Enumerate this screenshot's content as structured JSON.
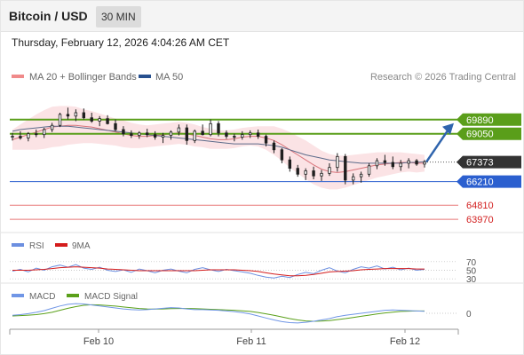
{
  "header": {
    "title": "Bitcoin / USD",
    "timeframe": "30 MIN"
  },
  "datetime": "Thursday, February 12, 2026 4:04:26 AM CET",
  "legend": {
    "ma20_bb": "MA 20 + Bollinger Bands",
    "ma50": "MA 50",
    "copyright": "Research © 2026 Trading Central"
  },
  "colors": {
    "resistance": "#5a9e1a",
    "support": "#2b5fcf",
    "lower_support": "#e87878",
    "candle": "#1f1f1f",
    "bollinger_fill": "#fbe3e5",
    "ma20": "#d9747b",
    "ma50": "#5c6b8a",
    "arrow": "#2f64ad",
    "rsi": "#6c8fe0",
    "rsi_ma": "#d41c1c",
    "macd": "#7096e6",
    "macd_signal": "#5aa01a",
    "current_price_bg": "#333333"
  },
  "chart_data": [
    {
      "type": "candlestick",
      "x_labels": [
        "Feb 10",
        "Feb 11",
        "Feb 12"
      ],
      "ylim": [
        63400,
        71300
      ],
      "current_price": 67373,
      "levels": [
        {
          "value": 69890,
          "label": "69890",
          "kind": "resistance"
        },
        {
          "value": 69050,
          "label": "69050",
          "kind": "resistance"
        },
        {
          "value": 66210,
          "label": "66210",
          "kind": "support"
        },
        {
          "value": 64810,
          "label": "64810",
          "kind": "lower_support"
        },
        {
          "value": 63970,
          "label": "63970",
          "kind": "lower_support"
        }
      ],
      "series": [
        {
          "name": "MA 20 + Bollinger Bands",
          "values": [
            68700,
            68850,
            69000,
            69150,
            69300,
            69450,
            69500,
            69550,
            69550,
            69500,
            69450,
            69350,
            69250,
            69150,
            69050,
            68950,
            68900,
            68900,
            68950,
            69000,
            69050,
            69100,
            69050,
            68950,
            68850,
            68750,
            68700,
            68700,
            68750,
            68850,
            68900,
            68900,
            68800,
            68650,
            68400,
            68100,
            67800,
            67500,
            67200,
            66950,
            66800,
            66750,
            66800,
            66900,
            67000,
            67100,
            67200,
            67250,
            67300,
            67350,
            67350,
            67300,
            67300
          ]
        },
        {
          "name": "MA 50",
          "values": [
            69200,
            69300,
            69350,
            69400,
            69450,
            69500,
            69500,
            69500,
            69450,
            69400,
            69350,
            69300,
            69250,
            69200,
            69150,
            69100,
            69050,
            69000,
            68950,
            68900,
            68850,
            68800,
            68750,
            68700,
            68650,
            68600,
            68550,
            68500,
            68450,
            68450,
            68450,
            68450,
            68400,
            68350,
            68250,
            68100,
            67950,
            67800,
            67700,
            67600,
            67500,
            67450,
            67400,
            67350,
            67300,
            67300,
            67300,
            67300,
            67300,
            67300,
            67350,
            67350,
            67400
          ]
        }
      ],
      "bollinger_width": [
        600,
        750,
        900,
        1050,
        1150,
        1200,
        1200,
        1150,
        1100,
        1000,
        950,
        900,
        850,
        800,
        800,
        750,
        700,
        650,
        650,
        650,
        650,
        650,
        650,
        650,
        600,
        600,
        550,
        550,
        550,
        550,
        550,
        600,
        700,
        850,
        950,
        1050,
        1100,
        1150,
        1150,
        1100,
        1050,
        1000,
        950,
        900,
        850,
        800,
        750,
        700,
        650,
        600,
        550,
        550,
        500
      ],
      "ohlc": [
        [
          68850,
          69100,
          68650,
          68900
        ],
        [
          68900,
          69200,
          68700,
          68800
        ],
        [
          68800,
          69150,
          68600,
          69050
        ],
        [
          69050,
          69300,
          68850,
          69000
        ],
        [
          69000,
          69400,
          68800,
          69300
        ],
        [
          69300,
          69700,
          69150,
          69550
        ],
        [
          69550,
          70300,
          69450,
          70200
        ],
        [
          70200,
          70600,
          69900,
          70100
        ],
        [
          70100,
          70500,
          69800,
          70300
        ],
        [
          70300,
          70550,
          69900,
          70000
        ],
        [
          70000,
          70300,
          69700,
          69800
        ],
        [
          69800,
          70100,
          69500,
          69950
        ],
        [
          69950,
          70150,
          69600,
          69650
        ],
        [
          69650,
          69900,
          69200,
          69300
        ],
        [
          69300,
          69500,
          68900,
          69050
        ],
        [
          69050,
          69250,
          68800,
          68950
        ],
        [
          68950,
          69200,
          68750,
          69100
        ],
        [
          69100,
          69350,
          68850,
          69000
        ],
        [
          69000,
          69200,
          68700,
          68850
        ],
        [
          68850,
          69100,
          68500,
          68950
        ],
        [
          68950,
          69250,
          68700,
          69150
        ],
        [
          69150,
          69600,
          68950,
          69400
        ],
        [
          69400,
          69600,
          68400,
          68650
        ],
        [
          68650,
          69300,
          68500,
          69200
        ],
        [
          69200,
          69600,
          68950,
          69000
        ],
        [
          69000,
          69900,
          68900,
          69650
        ],
        [
          69650,
          69800,
          68900,
          69100
        ],
        [
          69100,
          69250,
          68750,
          68900
        ],
        [
          68900,
          69050,
          68600,
          68850
        ],
        [
          68850,
          69200,
          68700,
          69000
        ],
        [
          69000,
          69250,
          68800,
          69100
        ],
        [
          69100,
          69300,
          68750,
          68900
        ],
        [
          68900,
          69000,
          68300,
          68500
        ],
        [
          68500,
          68650,
          67900,
          68100
        ],
        [
          68100,
          68200,
          67300,
          67500
        ],
        [
          67500,
          67700,
          66800,
          67000
        ],
        [
          67000,
          67200,
          66500,
          66650
        ],
        [
          66650,
          67000,
          66300,
          66850
        ],
        [
          66850,
          67100,
          66350,
          66550
        ],
        [
          66550,
          66900,
          66250,
          66700
        ],
        [
          66700,
          67300,
          66550,
          67050
        ],
        [
          67050,
          67900,
          66800,
          67700
        ],
        [
          67700,
          67850,
          66050,
          66300
        ],
        [
          66300,
          66700,
          66050,
          66500
        ],
        [
          66500,
          66800,
          66150,
          66650
        ],
        [
          66650,
          67300,
          66500,
          67150
        ],
        [
          67150,
          67600,
          66950,
          67450
        ],
        [
          67450,
          67800,
          67150,
          67350
        ],
        [
          67350,
          67700,
          66950,
          67100
        ],
        [
          67100,
          67500,
          66850,
          67300
        ],
        [
          67300,
          67600,
          67000,
          67450
        ],
        [
          67450,
          67550,
          67150,
          67250
        ],
        [
          67250,
          67500,
          67050,
          67373
        ]
      ]
    },
    {
      "type": "line",
      "title": "RSI",
      "ylim": [
        20,
        80
      ],
      "ticks": [
        70,
        50,
        30
      ],
      "series": [
        {
          "name": "RSI",
          "values": [
            48,
            52,
            46,
            55,
            50,
            58,
            62,
            57,
            63,
            55,
            52,
            57,
            50,
            47,
            51,
            45,
            53,
            49,
            44,
            50,
            53,
            48,
            44,
            52,
            56,
            51,
            47,
            52,
            49,
            46,
            43,
            38,
            34,
            32,
            36,
            33,
            40,
            45,
            42,
            50,
            56,
            48,
            44,
            52,
            58,
            55,
            60,
            53,
            57,
            51,
            55,
            50,
            52
          ]
        },
        {
          "name": "9MA",
          "values": [
            50,
            50,
            50,
            51,
            52,
            54,
            56,
            57,
            58,
            57,
            56,
            55,
            53,
            52,
            51,
            50,
            49,
            49,
            49,
            49,
            49,
            49,
            49,
            49,
            50,
            51,
            51,
            51,
            51,
            50,
            49,
            47,
            44,
            41,
            39,
            37,
            37,
            38,
            40,
            43,
            46,
            47,
            48,
            49,
            51,
            52,
            53,
            54,
            54,
            54,
            54,
            53,
            53
          ]
        }
      ]
    },
    {
      "type": "line",
      "title": "MACD",
      "ylim": [
        -400,
        400
      ],
      "ticks": [
        0
      ],
      "series": [
        {
          "name": "MACD",
          "values": [
            -60,
            -40,
            -10,
            30,
            80,
            150,
            220,
            270,
            290,
            280,
            250,
            220,
            190,
            160,
            130,
            110,
            100,
            110,
            130,
            150,
            170,
            160,
            130,
            110,
            110,
            100,
            90,
            70,
            50,
            20,
            -20,
            -80,
            -140,
            -200,
            -250,
            -280,
            -290,
            -270,
            -240,
            -200,
            -160,
            -100,
            -60,
            -30,
            0,
            30,
            60,
            90,
            100,
            90,
            80,
            70,
            60
          ]
        },
        {
          "name": "MACD Signal",
          "values": [
            -80,
            -70,
            -55,
            -40,
            -10,
            30,
            90,
            150,
            200,
            240,
            255,
            250,
            235,
            215,
            190,
            165,
            145,
            130,
            125,
            130,
            140,
            145,
            145,
            140,
            130,
            120,
            110,
            100,
            90,
            75,
            55,
            25,
            -15,
            -60,
            -110,
            -160,
            -200,
            -230,
            -240,
            -235,
            -220,
            -190,
            -160,
            -125,
            -90,
            -55,
            -20,
            10,
            35,
            55,
            65,
            70,
            70
          ]
        }
      ]
    }
  ]
}
